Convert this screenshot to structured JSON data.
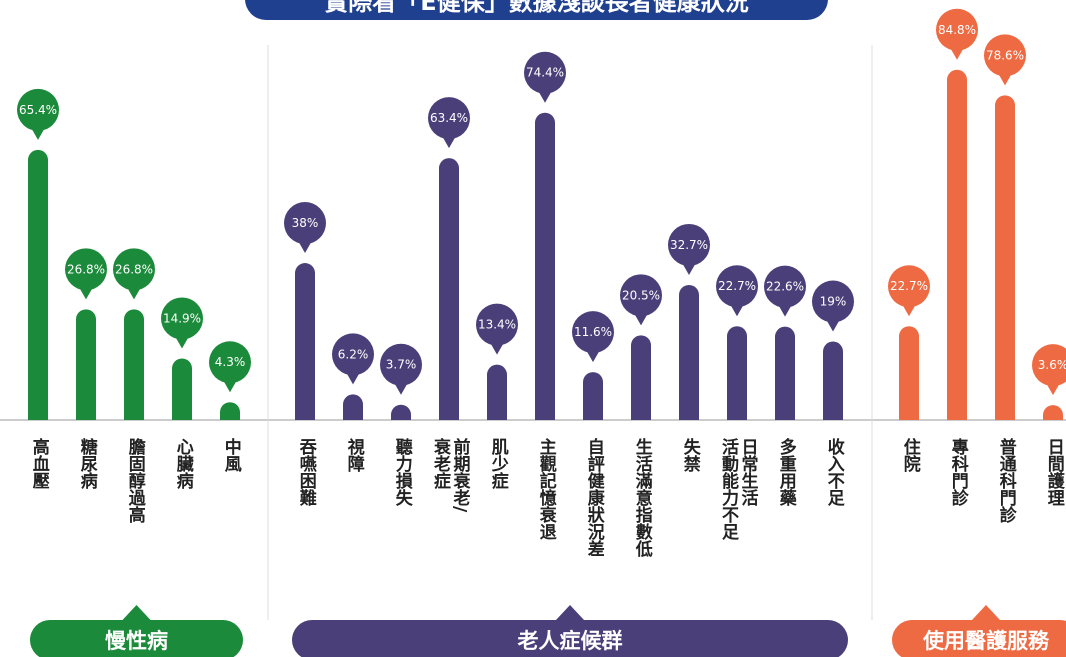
{
  "title": "實際看「E健保」數據淺談長者健康狀況",
  "chart_data": [
    {
      "type": "bar",
      "title": "慢性病",
      "color": "#1b8a3a",
      "categories": [
        "高血壓",
        "糖尿病",
        "膽固醇過高",
        "心臟病",
        "中風"
      ],
      "values": [
        65.4,
        26.8,
        26.8,
        14.9,
        4.3
      ],
      "value_labels": [
        "65.4%",
        "26.8%",
        "26.8%",
        "14.9%",
        "4.3%"
      ]
    },
    {
      "type": "bar",
      "title": "老人症候群",
      "color": "#4b3f7a",
      "categories": [
        "吞嚥困難",
        "視障",
        "聽力損失",
        "前期衰老/\n衰老症",
        "肌少症",
        "主觀記憶衰退",
        "自評健康狀況差",
        "生活滿意指數低",
        "失禁",
        "日常生活\n活動能力不足",
        "多重用藥",
        "收入不足"
      ],
      "values": [
        38,
        6.2,
        3.7,
        63.4,
        13.4,
        74.4,
        11.6,
        20.5,
        32.7,
        22.7,
        22.6,
        19
      ],
      "value_labels": [
        "38%",
        "6.2%",
        "3.7%",
        "63.4%",
        "13.4%",
        "74.4%",
        "11.6%",
        "20.5%",
        "32.7%",
        "22.7%",
        "22.6%",
        "19%"
      ]
    },
    {
      "type": "bar",
      "title": "使用醫護服務",
      "color": "#ee6a43",
      "categories": [
        "住院",
        "專科門診",
        "普通科門診",
        "日間護理"
      ],
      "values": [
        22.7,
        84.8,
        78.6,
        3.6
      ],
      "value_labels": [
        "22.7%",
        "84.8%",
        "78.6%",
        "3.6%"
      ]
    }
  ]
}
